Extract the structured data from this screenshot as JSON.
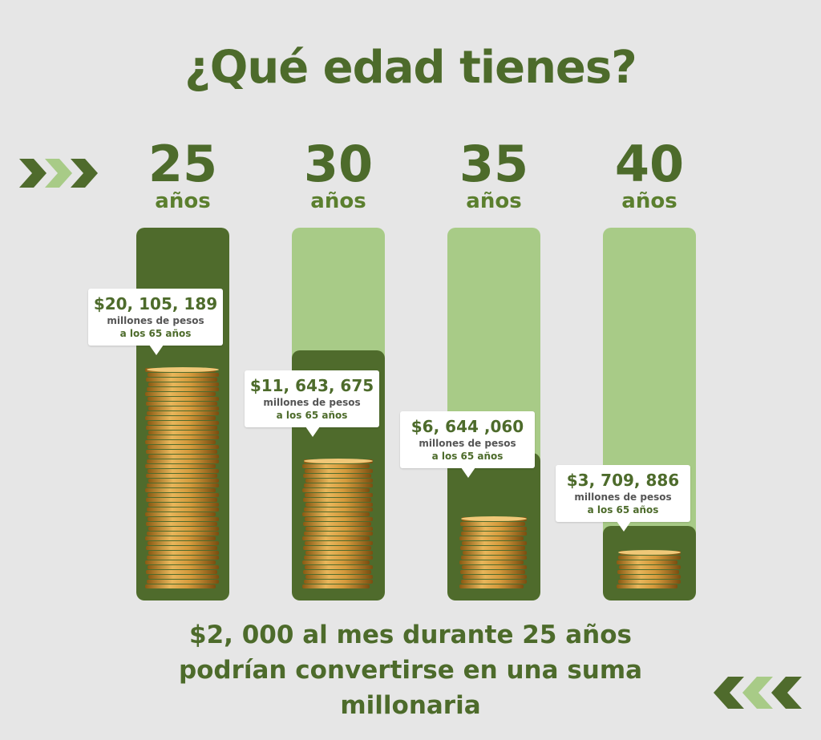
{
  "title": "¿Qué edad tienes?",
  "icons": {
    "left": "chevrons-right-icon",
    "right": "chevrons-left-icon"
  },
  "colors": {
    "dark_green": "#4f6b2c",
    "light_green": "#a8cb87",
    "text_green": "#4d6b2b",
    "background": "#e6e6e6"
  },
  "chart_data": {
    "type": "bar",
    "categories": [
      "25",
      "30",
      "35",
      "40"
    ],
    "unit_label": "años",
    "values": [
      20105189,
      11643675,
      6644060,
      3709886
    ],
    "value_labels": [
      "$20, 105, 189",
      "$11, 643, 675",
      "$6, 644 ,060",
      "$3, 709, 886"
    ],
    "value_sublabel": "millones de pesos",
    "value_sublabel2": "a los 65 años",
    "ylim": [
      0,
      20105189
    ]
  },
  "ages": [
    {
      "num": "25",
      "unit": "años"
    },
    {
      "num": "30",
      "unit": "años"
    },
    {
      "num": "35",
      "unit": "años"
    },
    {
      "num": "40",
      "unit": "años"
    }
  ],
  "callouts": [
    {
      "amount": "$20, 105, 189",
      "line1": "millones de pesos",
      "line2": "a los 65 años"
    },
    {
      "amount": "$11, 643, 675",
      "line1": "millones de pesos",
      "line2": "a los 65 años"
    },
    {
      "amount": "$6, 644 ,060",
      "line1": "millones de pesos",
      "line2": "a los 65 años"
    },
    {
      "amount": "$3, 709, 886",
      "line1": "millones de pesos",
      "line2": "a los 65 años"
    }
  ],
  "footer": {
    "line1": "$2, 000 al mes durante 25 años",
    "line2": "podrían convertirse en una suma",
    "line3": "millonaria"
  }
}
